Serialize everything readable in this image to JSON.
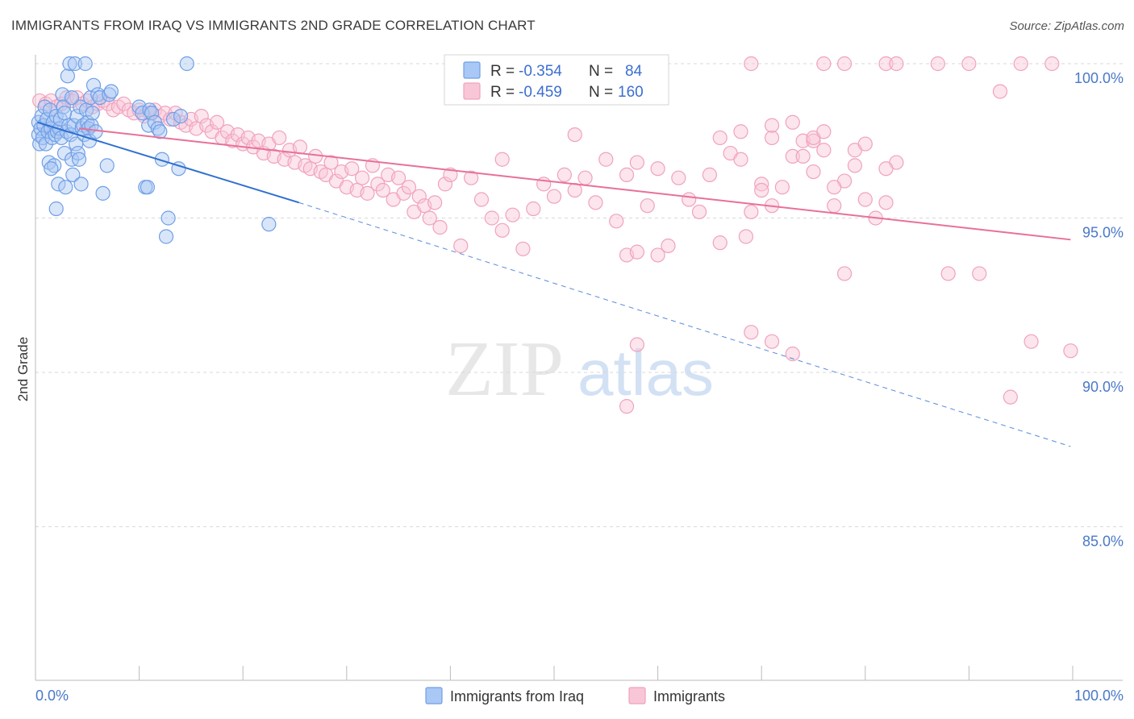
{
  "header": {
    "title": "IMMIGRANTS FROM IRAQ VS IMMIGRANTS 2ND GRADE CORRELATION CHART",
    "source": "Source: ZipAtlas.com"
  },
  "watermark": {
    "zip": "ZIP",
    "atlas": "atlas"
  },
  "colors": {
    "blue": "#6f9fe6",
    "blue_fill": "#aac8f5",
    "blue_line": "#2f6fcf",
    "pink": "#f0a2bd",
    "pink_fill": "#f8c6d7",
    "pink_line": "#e8709a",
    "axis_text": "#4a78c8",
    "grid": "#d9d9d9"
  },
  "legend": {
    "rows": [
      {
        "r_label": "R = ",
        "r_value": "-0.354",
        "n_label": "N = ",
        "n_value": "84"
      },
      {
        "r_label": "R = ",
        "r_value": "-0.459",
        "n_label": "N = ",
        "n_value": "160"
      }
    ]
  },
  "bottom_legend": {
    "items": [
      {
        "label": "Immigrants from Iraq"
      },
      {
        "label": "Immigrants"
      }
    ]
  },
  "chart_data": {
    "type": "scatter",
    "title": "IMMIGRANTS FROM IRAQ VS IMMIGRANTS 2ND GRADE CORRELATION CHART",
    "xlabel": "",
    "ylabel": "2nd Grade",
    "x_tick_labels": [
      "0.0%",
      "100.0%"
    ],
    "y_tick_labels": [
      "100.0%",
      "95.0%",
      "90.0%",
      "85.0%"
    ],
    "y_ticks": [
      100,
      95,
      90,
      85
    ],
    "xlim": [
      0,
      100
    ],
    "ylim": [
      80.4,
      100.9
    ],
    "grid": true,
    "legend_position": "top-center",
    "series": [
      {
        "name": "Immigrants from Iraq",
        "r": -0.354,
        "n": 84,
        "trend": {
          "x0": 0.2,
          "y0": 98.1,
          "x1": 25.4,
          "y1": 95.5,
          "dashed_to_x": 99.8,
          "dashed_to_y": 87.6
        },
        "points": [
          [
            0.3,
            98.1
          ],
          [
            0.3,
            97.7
          ],
          [
            0.4,
            97.4
          ],
          [
            0.5,
            97.9
          ],
          [
            0.6,
            98.3
          ],
          [
            0.7,
            97.6
          ],
          [
            0.8,
            98.0
          ],
          [
            0.9,
            98.6
          ],
          [
            1.0,
            97.4
          ],
          [
            1.1,
            98.2
          ],
          [
            1.2,
            97.8
          ],
          [
            1.3,
            96.8
          ],
          [
            1.4,
            98.5
          ],
          [
            1.5,
            97.9
          ],
          [
            1.6,
            97.6
          ],
          [
            1.7,
            98.1
          ],
          [
            1.8,
            96.7
          ],
          [
            1.9,
            97.7
          ],
          [
            2.0,
            98.3
          ],
          [
            2.1,
            97.8
          ],
          [
            2.2,
            96.1
          ],
          [
            2.3,
            97.9
          ],
          [
            2.4,
            98.2
          ],
          [
            2.5,
            97.6
          ],
          [
            2.6,
            99.0
          ],
          [
            2.7,
            98.6
          ],
          [
            2.8,
            97.1
          ],
          [
            2.9,
            96.0
          ],
          [
            3.0,
            97.8
          ],
          [
            3.1,
            99.6
          ],
          [
            3.2,
            98.0
          ],
          [
            3.3,
            100.0
          ],
          [
            3.4,
            97.7
          ],
          [
            3.5,
            96.9
          ],
          [
            3.6,
            96.4
          ],
          [
            3.7,
            98.0
          ],
          [
            3.8,
            100.0
          ],
          [
            3.9,
            97.4
          ],
          [
            4.0,
            98.3
          ],
          [
            4.1,
            97.1
          ],
          [
            4.2,
            96.9
          ],
          [
            4.3,
            98.6
          ],
          [
            4.4,
            96.1
          ],
          [
            4.5,
            97.9
          ],
          [
            4.6,
            98.0
          ],
          [
            4.7,
            97.7
          ],
          [
            4.8,
            100.0
          ],
          [
            4.9,
            98.5
          ],
          [
            5.0,
            98.1
          ],
          [
            5.1,
            97.9
          ],
          [
            5.2,
            97.5
          ],
          [
            5.3,
            98.9
          ],
          [
            5.4,
            98.0
          ],
          [
            5.5,
            98.4
          ],
          [
            5.6,
            99.3
          ],
          [
            5.8,
            97.8
          ],
          [
            6.0,
            99.0
          ],
          [
            6.2,
            98.9
          ],
          [
            6.5,
            95.8
          ],
          [
            6.9,
            96.7
          ],
          [
            7.1,
            99.0
          ],
          [
            7.3,
            99.1
          ],
          [
            10.0,
            98.6
          ],
          [
            10.3,
            98.4
          ],
          [
            10.6,
            96.0
          ],
          [
            10.8,
            96.0
          ],
          [
            10.9,
            98.0
          ],
          [
            11.0,
            98.5
          ],
          [
            11.2,
            98.4
          ],
          [
            11.5,
            98.1
          ],
          [
            11.8,
            97.9
          ],
          [
            12.0,
            97.8
          ],
          [
            12.2,
            96.9
          ],
          [
            12.6,
            94.4
          ],
          [
            12.8,
            95.0
          ],
          [
            13.3,
            98.2
          ],
          [
            13.8,
            96.6
          ],
          [
            14.0,
            98.3
          ],
          [
            14.6,
            100.0
          ],
          [
            2.0,
            95.3
          ],
          [
            1.5,
            96.6
          ],
          [
            2.8,
            98.4
          ],
          [
            3.5,
            98.9
          ],
          [
            22.5,
            94.8
          ]
        ]
      },
      {
        "name": "Immigrants",
        "r": -0.459,
        "n": 160,
        "trend": {
          "x0": 4.2,
          "y0": 97.9,
          "x1": 99.8,
          "y1": 94.3
        },
        "points": [
          [
            0.4,
            98.8
          ],
          [
            1.0,
            98.7
          ],
          [
            1.5,
            98.8
          ],
          [
            2.0,
            98.6
          ],
          [
            2.5,
            98.7
          ],
          [
            3.0,
            98.9
          ],
          [
            3.5,
            98.8
          ],
          [
            4.0,
            98.9
          ],
          [
            4.5,
            98.7
          ],
          [
            5.0,
            98.8
          ],
          [
            5.5,
            98.6
          ],
          [
            6.0,
            98.7
          ],
          [
            6.5,
            98.8
          ],
          [
            7.0,
            98.7
          ],
          [
            7.5,
            98.5
          ],
          [
            8.0,
            98.6
          ],
          [
            8.5,
            98.7
          ],
          [
            9.0,
            98.5
          ],
          [
            9.5,
            98.4
          ],
          [
            10.0,
            98.5
          ],
          [
            10.5,
            98.3
          ],
          [
            11.0,
            98.4
          ],
          [
            11.5,
            98.5
          ],
          [
            12.0,
            98.3
          ],
          [
            12.5,
            98.4
          ],
          [
            13.0,
            98.2
          ],
          [
            13.5,
            98.4
          ],
          [
            14.0,
            98.1
          ],
          [
            14.5,
            98.0
          ],
          [
            15.0,
            98.2
          ],
          [
            15.5,
            97.9
          ],
          [
            16.0,
            98.3
          ],
          [
            16.5,
            98.0
          ],
          [
            17.0,
            97.8
          ],
          [
            17.5,
            98.1
          ],
          [
            18.0,
            97.6
          ],
          [
            18.5,
            97.8
          ],
          [
            19.0,
            97.5
          ],
          [
            19.5,
            97.7
          ],
          [
            20.0,
            97.4
          ],
          [
            20.5,
            97.6
          ],
          [
            21.0,
            97.3
          ],
          [
            21.5,
            97.5
          ],
          [
            22.0,
            97.1
          ],
          [
            22.5,
            97.4
          ],
          [
            23.0,
            97.0
          ],
          [
            23.5,
            97.6
          ],
          [
            24.0,
            96.9
          ],
          [
            24.5,
            97.2
          ],
          [
            25.0,
            96.8
          ],
          [
            25.5,
            97.3
          ],
          [
            26.0,
            96.7
          ],
          [
            26.5,
            96.6
          ],
          [
            27.0,
            97.0
          ],
          [
            27.5,
            96.5
          ],
          [
            28.0,
            96.4
          ],
          [
            28.5,
            96.8
          ],
          [
            29.0,
            96.2
          ],
          [
            29.5,
            96.5
          ],
          [
            30.0,
            96.0
          ],
          [
            30.5,
            96.6
          ],
          [
            31.0,
            95.9
          ],
          [
            31.5,
            96.3
          ],
          [
            32.0,
            95.8
          ],
          [
            32.5,
            96.7
          ],
          [
            33.0,
            96.1
          ],
          [
            33.5,
            95.9
          ],
          [
            34.0,
            96.4
          ],
          [
            34.5,
            95.6
          ],
          [
            35.0,
            96.3
          ],
          [
            35.5,
            95.8
          ],
          [
            36.0,
            96.0
          ],
          [
            36.5,
            95.2
          ],
          [
            37.0,
            95.7
          ],
          [
            37.5,
            95.4
          ],
          [
            38.0,
            95.0
          ],
          [
            38.5,
            95.5
          ],
          [
            39.0,
            94.7
          ],
          [
            39.5,
            96.1
          ],
          [
            40.0,
            96.4
          ],
          [
            41.0,
            94.1
          ],
          [
            42.0,
            96.3
          ],
          [
            43.0,
            95.6
          ],
          [
            44.0,
            95.0
          ],
          [
            45.0,
            94.6
          ],
          [
            46.0,
            95.1
          ],
          [
            47.0,
            94.0
          ],
          [
            48.0,
            95.3
          ],
          [
            49.0,
            96.1
          ],
          [
            50.0,
            95.7
          ],
          [
            51.0,
            96.4
          ],
          [
            52.0,
            95.9
          ],
          [
            53.0,
            96.3
          ],
          [
            54.0,
            95.5
          ],
          [
            55.0,
            96.9
          ],
          [
            56.0,
            94.9
          ],
          [
            57.0,
            96.4
          ],
          [
            58.0,
            96.8
          ],
          [
            59.0,
            95.4
          ],
          [
            60.0,
            96.6
          ],
          [
            61.0,
            94.1
          ],
          [
            62.0,
            96.3
          ],
          [
            63.0,
            95.6
          ],
          [
            64.0,
            95.2
          ],
          [
            65.0,
            96.4
          ],
          [
            66.0,
            97.6
          ],
          [
            67.0,
            97.1
          ],
          [
            68.0,
            96.9
          ],
          [
            69.0,
            95.2
          ],
          [
            70.0,
            96.1
          ],
          [
            71.0,
            95.4
          ],
          [
            72.0,
            96.0
          ],
          [
            73.0,
            97.0
          ],
          [
            74.0,
            97.5
          ],
          [
            75.0,
            96.5
          ],
          [
            76.0,
            97.2
          ],
          [
            77.0,
            95.4
          ],
          [
            78.0,
            96.2
          ],
          [
            79.0,
            96.7
          ],
          [
            80.0,
            95.6
          ],
          [
            81.0,
            95.0
          ],
          [
            82.0,
            95.5
          ],
          [
            83.0,
            96.8
          ],
          [
            52.0,
            97.7
          ],
          [
            68.0,
            97.8
          ],
          [
            71.0,
            97.6
          ],
          [
            75.0,
            97.5
          ],
          [
            73.0,
            98.1
          ],
          [
            60.0,
            93.8
          ],
          [
            57.0,
            93.8
          ],
          [
            66.0,
            94.2
          ],
          [
            68.5,
            94.4
          ],
          [
            75.0,
            97.6
          ],
          [
            77.0,
            96.0
          ],
          [
            79.0,
            97.2
          ],
          [
            80.0,
            97.4
          ],
          [
            58.0,
            93.9
          ],
          [
            71.0,
            98.0
          ],
          [
            74.0,
            97.0
          ],
          [
            82.0,
            96.6
          ],
          [
            76.0,
            97.8
          ],
          [
            69.0,
            91.3
          ],
          [
            71.0,
            91.0
          ],
          [
            58.0,
            90.9
          ],
          [
            70.0,
            95.9
          ],
          [
            78.0,
            93.2
          ],
          [
            87.0,
            100.0
          ],
          [
            90.0,
            100.0
          ],
          [
            93.0,
            99.1
          ],
          [
            95.0,
            100.0
          ],
          [
            96.0,
            91.0
          ],
          [
            98.0,
            100.0
          ],
          [
            78.0,
            100.0
          ],
          [
            69.0,
            100.0
          ],
          [
            76.0,
            100.0
          ],
          [
            82.0,
            100.0
          ],
          [
            83.0,
            100.0
          ],
          [
            91.0,
            93.2
          ],
          [
            94.0,
            89.2
          ],
          [
            99.8,
            90.7
          ],
          [
            57.0,
            88.9
          ],
          [
            73.0,
            90.6
          ],
          [
            88.0,
            93.2
          ],
          [
            45.0,
            96.9
          ]
        ]
      }
    ]
  }
}
